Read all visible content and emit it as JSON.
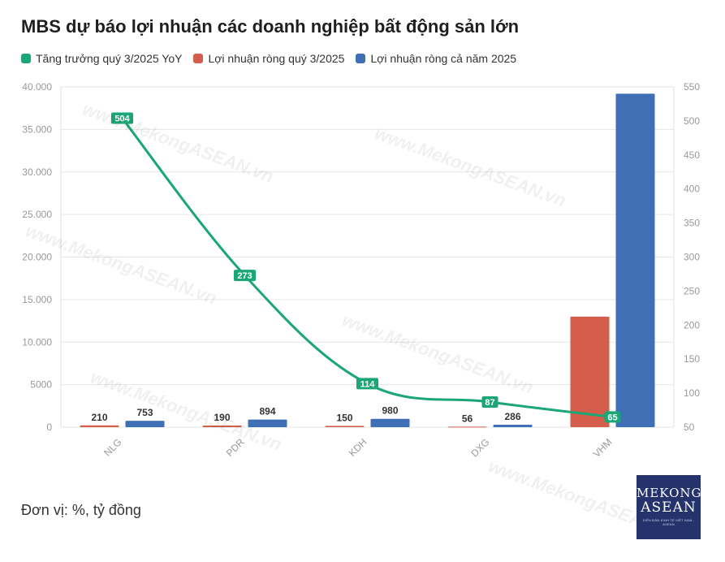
{
  "title": "MBS dự báo lợi nhuận các doanh nghiệp bất động sản lớn",
  "legend": [
    {
      "label": "Tăng trưởng quý 3/2025 YoY",
      "color": "#1aa675"
    },
    {
      "label": "Lợi nhuận ròng quý 3/2025",
      "color": "#d45d4c"
    },
    {
      "label": "Lợi nhuận ròng cả năm 2025",
      "color": "#3f6fb5"
    }
  ],
  "unit_note": "Đơn vị: %, tỷ đồng",
  "logo": {
    "line1": "MEKONG",
    "line2": "ASEAN",
    "tagline": "DIỄN ĐÀN KINH TẾ VIỆT NAM - ASEAN"
  },
  "watermark": "www.MekongASEAN.vn",
  "chart_data": {
    "type": "bar",
    "categories": [
      "NLG",
      "PDR",
      "KDH",
      "DXG",
      "VHM"
    ],
    "series": [
      {
        "name": "Lợi nhuận ròng quý 3/2025",
        "type": "bar",
        "axis": "left",
        "color": "#d45d4c",
        "values": [
          210,
          190,
          150,
          56,
          13000
        ],
        "labels": [
          "210",
          "190",
          "150",
          "56",
          ""
        ]
      },
      {
        "name": "Lợi nhuận ròng cả năm 2025",
        "type": "bar",
        "axis": "left",
        "color": "#3f6fb5",
        "values": [
          753,
          894,
          980,
          286,
          39200
        ],
        "labels": [
          "753",
          "894",
          "980",
          "286",
          ""
        ]
      },
      {
        "name": "Tăng trưởng quý 3/2025 YoY",
        "type": "line",
        "axis": "right",
        "color": "#1aa675",
        "values": [
          504,
          273,
          114,
          87,
          65
        ],
        "labels": [
          "504",
          "273",
          "114",
          "87",
          "65"
        ]
      }
    ],
    "left_axis": {
      "ylim": [
        0,
        40000
      ],
      "ticks": [
        0,
        5000,
        10000,
        15000,
        20000,
        25000,
        30000,
        35000,
        40000
      ],
      "tick_labels": [
        "0",
        "5000",
        "10.000",
        "15.000",
        "20.000",
        "25.000",
        "30.000",
        "35.000",
        "40.000"
      ]
    },
    "right_axis": {
      "ylim": [
        50,
        550
      ],
      "ticks": [
        50,
        100,
        150,
        200,
        250,
        300,
        350,
        400,
        450,
        500,
        550
      ],
      "tick_labels": [
        "50",
        "100",
        "150",
        "200",
        "250",
        "300",
        "350",
        "400",
        "450",
        "500",
        "550"
      ]
    },
    "grid": true,
    "legend_position": "top-left"
  }
}
